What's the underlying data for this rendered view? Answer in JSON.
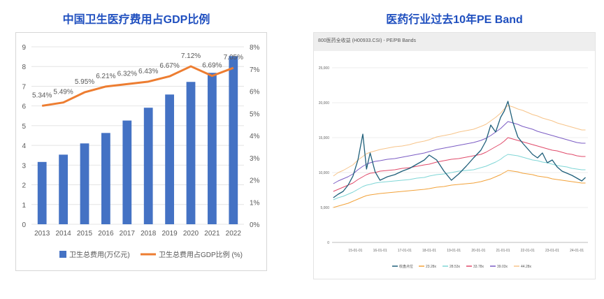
{
  "left_title": "中国卫生医疗费用占GDP比例",
  "right_title": "医药行业过去10年PE Band",
  "right_subtitle": "800医药全收益 (H00933.CSI) - PE/PB Bands",
  "chart_data": [
    {
      "type": "bar",
      "title": "中国卫生医疗费用占GDP比例",
      "categories": [
        "2013",
        "2014",
        "2015",
        "2016",
        "2017",
        "2018",
        "2019",
        "2020",
        "2021",
        "2022"
      ],
      "series": [
        {
          "name": "卫生总费用(万亿元)",
          "type": "bar",
          "axis": "left",
          "color": "#4472c4",
          "values": [
            3.16,
            3.53,
            4.1,
            4.63,
            5.26,
            5.91,
            6.58,
            7.22,
            7.68,
            8.53
          ]
        },
        {
          "name": "卫生总费用占GDP比例 (%)",
          "type": "line",
          "axis": "right",
          "color": "#ed7d31",
          "values": [
            5.34,
            5.49,
            5.95,
            6.21,
            6.32,
            6.43,
            6.67,
            7.12,
            6.69,
            7.05
          ],
          "labels": [
            "5.34%",
            "5.49%",
            "5.95%",
            "6.21%",
            "6.32%",
            "6.43%",
            "6.67%",
            "7.12%",
            "6.69%",
            "7.05%"
          ]
        }
      ],
      "y_left_ticks": [
        "0",
        "1",
        "2",
        "3",
        "4",
        "5",
        "6",
        "7",
        "8",
        "9"
      ],
      "y_right_ticks": [
        "0%",
        "1%",
        "2%",
        "3%",
        "4%",
        "5%",
        "6%",
        "7%",
        "8%"
      ],
      "ylim": [
        0,
        9
      ],
      "ylim_right": [
        0,
        8
      ],
      "legend_position": "bottom",
      "grid": true
    },
    {
      "type": "line",
      "title": "医药行业过去10年PE Band",
      "x_ticks": [
        "15-01-01",
        "16-01-01",
        "17-01-01",
        "18-01-01",
        "19-01-01",
        "20-01-01",
        "21-01-01",
        "22-01-01",
        "23-01-01",
        "24-01-01"
      ],
      "y_ticks": [
        "0",
        "5,000",
        "10,000",
        "15,000",
        "20,000",
        "25,000"
      ],
      "ylim": [
        0,
        25000
      ],
      "x": [
        2014.1,
        2014.3,
        2014.5,
        2014.7,
        2014.9,
        2015.1,
        2015.3,
        2015.45,
        2015.6,
        2015.8,
        2016.0,
        2016.3,
        2016.6,
        2016.9,
        2017.2,
        2017.5,
        2017.8,
        2018.0,
        2018.3,
        2018.6,
        2018.9,
        2019.2,
        2019.5,
        2019.8,
        2020.1,
        2020.3,
        2020.5,
        2020.7,
        2020.9,
        2021.05,
        2021.2,
        2021.4,
        2021.6,
        2021.8,
        2022.0,
        2022.2,
        2022.4,
        2022.6,
        2022.8,
        2023.0,
        2023.2,
        2023.4,
        2023.6,
        2023.8,
        2024.0,
        2024.2,
        2024.35
      ],
      "series": [
        {
          "name": "收盘点位",
          "color": "#1f5f7a",
          "values": [
            6400,
            6900,
            7300,
            8200,
            9500,
            11800,
            15500,
            10500,
            12800,
            10100,
            8900,
            9400,
            9700,
            10200,
            10600,
            11200,
            11800,
            12500,
            11800,
            10200,
            8900,
            9800,
            10900,
            12100,
            13200,
            14500,
            16800,
            15800,
            17900,
            18800,
            20200,
            17200,
            15100,
            14200,
            13400,
            12600,
            12100,
            12800,
            11400,
            11800,
            10800,
            10200,
            9900,
            9600,
            9200,
            8800,
            9300
          ]
        },
        {
          "name": "23.28x",
          "color": "#f2a23a",
          "values": [
            5000,
            5200,
            5400,
            5600,
            5900,
            6200,
            6500,
            6700,
            6800,
            6900,
            7000,
            7100,
            7200,
            7300,
            7400,
            7500,
            7600,
            7700,
            7900,
            8000,
            8200,
            8300,
            8400,
            8500,
            8700,
            8900,
            9100,
            9400,
            9700,
            10000,
            10300,
            10200,
            10100,
            9900,
            9800,
            9700,
            9500,
            9400,
            9300,
            9100,
            9000,
            8900,
            8800,
            8700,
            8600,
            8500,
            8500
          ]
        },
        {
          "name": "28.53x",
          "color": "#7fd6d6",
          "values": [
            6100,
            6400,
            6600,
            6900,
            7200,
            7600,
            8000,
            8200,
            8300,
            8500,
            8600,
            8700,
            8800,
            8900,
            9000,
            9200,
            9300,
            9500,
            9700,
            9800,
            10000,
            10200,
            10300,
            10400,
            10700,
            10900,
            11200,
            11500,
            11900,
            12300,
            12600,
            12500,
            12400,
            12200,
            12000,
            11800,
            11700,
            11500,
            11400,
            11200,
            11000,
            10900,
            10800,
            10600,
            10500,
            10400,
            10400
          ]
        },
        {
          "name": "33.78x",
          "color": "#e04a6a",
          "values": [
            7300,
            7600,
            7900,
            8200,
            8500,
            9000,
            9400,
            9700,
            9900,
            10000,
            10200,
            10300,
            10400,
            10600,
            10700,
            10900,
            11100,
            11200,
            11500,
            11700,
            11900,
            12000,
            12200,
            12400,
            12600,
            12900,
            13300,
            13700,
            14100,
            14500,
            15000,
            14800,
            14600,
            14400,
            14200,
            14000,
            13800,
            13600,
            13400,
            13200,
            13100,
            12900,
            12700,
            12600,
            12400,
            12300,
            12300
          ]
        },
        {
          "name": "39.03x",
          "color": "#7b5cc4",
          "values": [
            8400,
            8800,
            9100,
            9400,
            9800,
            10400,
            10900,
            11200,
            11400,
            11600,
            11700,
            11900,
            12000,
            12200,
            12400,
            12600,
            12800,
            13000,
            13300,
            13500,
            13700,
            13900,
            14100,
            14300,
            14600,
            14900,
            15300,
            15800,
            16300,
            16800,
            17300,
            17100,
            16900,
            16600,
            16400,
            16200,
            15900,
            15700,
            15500,
            15300,
            15100,
            14900,
            14700,
            14500,
            14300,
            14200,
            14200
          ]
        },
        {
          "name": "44.28x",
          "color": "#f7c48a",
          "values": [
            9500,
            10000,
            10300,
            10700,
            11100,
            11800,
            12300,
            12700,
            12900,
            13100,
            13300,
            13500,
            13700,
            13800,
            14000,
            14300,
            14500,
            14700,
            15100,
            15300,
            15500,
            15800,
            16000,
            16200,
            16600,
            16900,
            17400,
            17900,
            18500,
            19100,
            19600,
            19400,
            19100,
            18900,
            18600,
            18300,
            18100,
            17800,
            17600,
            17400,
            17100,
            16900,
            16700,
            16500,
            16300,
            16100,
            16100
          ]
        }
      ],
      "legend_position": "bottom"
    }
  ]
}
